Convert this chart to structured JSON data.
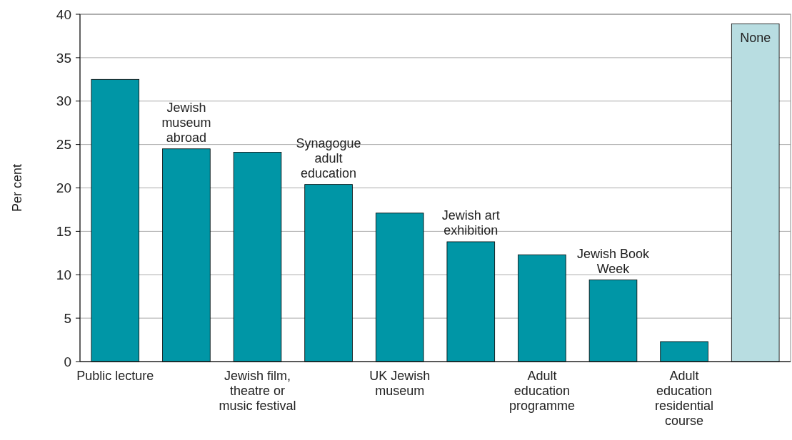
{
  "chart_data": {
    "type": "bar",
    "ylabel": "Per cent",
    "categories": [
      "Public lecture",
      "Jewish museum abroad",
      "Jewish film, theatre or music festival",
      "Synagogue adult education",
      "UK Jewish museum",
      "Jewish art exhibition",
      "Adult education programme",
      "Jewish Book Week",
      "Adult education residential course",
      "None"
    ],
    "values": [
      32.5,
      24.5,
      24.1,
      20.4,
      17.1,
      13.8,
      12.3,
      9.4,
      2.3,
      38.9
    ],
    "colors": [
      "#0096a6",
      "#0096a6",
      "#0096a6",
      "#0096a6",
      "#0096a6",
      "#0096a6",
      "#0096a6",
      "#0096a6",
      "#0096a6",
      "#b8dde1"
    ],
    "ylim": [
      0,
      40
    ],
    "yticks": [
      0,
      5,
      10,
      15,
      20,
      25,
      30,
      35,
      40
    ],
    "grid": "y"
  }
}
